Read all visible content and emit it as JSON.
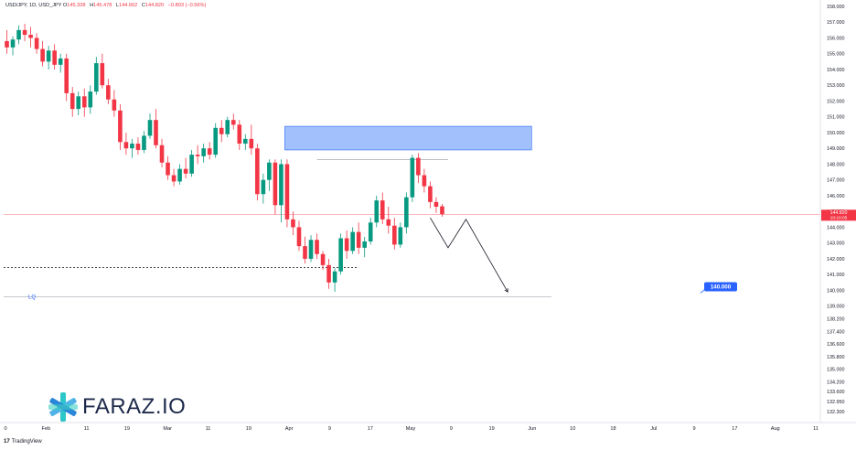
{
  "header": {
    "symbol": "USD/JPY, 1D, USD_JPY",
    "o_label": "O",
    "o_value": "145.328",
    "h_label": "H",
    "h_value": "145.478",
    "l_label": "L",
    "l_value": "144.662",
    "c_label": "C",
    "c_value": "144.820",
    "change": "−0.803 (−0.56%)"
  },
  "brand": {
    "name": "FARAZ.IO",
    "icon": "faraz-logo-icon"
  },
  "footer": {
    "logo": "TradingView",
    "mark": "17"
  },
  "colors": {
    "up": "#089981",
    "down": "#f23645",
    "zone_fill": "#90b5fb",
    "zone_stroke": "#2962ff",
    "badge": "#2962ff",
    "price_line": "#f23645"
  },
  "chart_data": {
    "type": "candlestick",
    "symbol": "USD/JPY",
    "timeframe": "1D",
    "ylim": [
      131.85,
      158.0
    ],
    "y_ticks": [
      "158.000",
      "157.000",
      "156.000",
      "155.000",
      "154.000",
      "153.000",
      "152.000",
      "151.000",
      "150.000",
      "149.000",
      "148.000",
      "147.000",
      "146.000",
      "145.000",
      "144.000",
      "143.000",
      "142.000",
      "141.000",
      "140.000",
      "139.000",
      "138.200",
      "137.400",
      "136.600",
      "135.800",
      "135.000",
      "134.200",
      "133.600",
      "132.950",
      "132.300"
    ],
    "x_ticks": [
      "0",
      "Feb",
      "11",
      "19",
      "Mar",
      "11",
      "19",
      "Apr",
      "9",
      "17",
      "May",
      "9",
      "19",
      "Jun",
      "10",
      "18",
      "Jul",
      "9",
      "17",
      "Aug",
      "11"
    ],
    "last_price": {
      "value": 144.82,
      "label": "144.820",
      "countdown": "10:10:05"
    },
    "target_badge": {
      "value": 140.0,
      "label": "140.000"
    },
    "liquidity_line": {
      "value": 139.6,
      "label": "LQ"
    },
    "support_dashed": {
      "value": 141.45
    },
    "resistance_zone": {
      "from": 148.9,
      "to": 150.4
    },
    "swing_high_line": {
      "value": 148.3
    },
    "projected_path": [
      {
        "bar": 71,
        "value": 144.6
      },
      {
        "bar": 74,
        "value": 142.7
      },
      {
        "bar": 77,
        "value": 144.5
      },
      {
        "bar": 84,
        "value": 139.9
      }
    ],
    "candles": [
      {
        "o": 155.8,
        "h": 156.5,
        "l": 155.0,
        "c": 155.4
      },
      {
        "o": 155.4,
        "h": 156.1,
        "l": 154.9,
        "c": 155.9
      },
      {
        "o": 155.9,
        "h": 156.8,
        "l": 155.6,
        "c": 156.5
      },
      {
        "o": 156.5,
        "h": 156.9,
        "l": 155.8,
        "c": 156.2
      },
      {
        "o": 156.2,
        "h": 156.7,
        "l": 155.4,
        "c": 156.0
      },
      {
        "o": 156.0,
        "h": 156.3,
        "l": 155.0,
        "c": 155.3
      },
      {
        "o": 155.3,
        "h": 155.8,
        "l": 154.2,
        "c": 154.5
      },
      {
        "o": 154.5,
        "h": 155.5,
        "l": 154.0,
        "c": 155.2
      },
      {
        "o": 155.2,
        "h": 155.6,
        "l": 154.0,
        "c": 154.3
      },
      {
        "o": 154.3,
        "h": 155.0,
        "l": 153.8,
        "c": 154.7
      },
      {
        "o": 154.7,
        "h": 155.0,
        "l": 152.0,
        "c": 152.5
      },
      {
        "o": 152.5,
        "h": 152.9,
        "l": 151.0,
        "c": 151.5
      },
      {
        "o": 151.5,
        "h": 152.6,
        "l": 151.1,
        "c": 152.3
      },
      {
        "o": 152.3,
        "h": 152.8,
        "l": 151.0,
        "c": 151.6
      },
      {
        "o": 151.6,
        "h": 153.0,
        "l": 151.2,
        "c": 152.6
      },
      {
        "o": 152.6,
        "h": 154.8,
        "l": 152.4,
        "c": 154.4
      },
      {
        "o": 154.4,
        "h": 155.0,
        "l": 152.8,
        "c": 153.0
      },
      {
        "o": 153.0,
        "h": 153.4,
        "l": 151.8,
        "c": 152.1
      },
      {
        "o": 152.1,
        "h": 152.7,
        "l": 151.0,
        "c": 151.4
      },
      {
        "o": 151.4,
        "h": 151.8,
        "l": 148.9,
        "c": 149.4
      },
      {
        "o": 149.4,
        "h": 150.0,
        "l": 148.6,
        "c": 149.0
      },
      {
        "o": 149.0,
        "h": 149.6,
        "l": 148.4,
        "c": 149.3
      },
      {
        "o": 149.3,
        "h": 149.7,
        "l": 148.6,
        "c": 148.9
      },
      {
        "o": 148.9,
        "h": 150.1,
        "l": 148.7,
        "c": 149.8
      },
      {
        "o": 149.8,
        "h": 151.2,
        "l": 149.6,
        "c": 150.8
      },
      {
        "o": 150.8,
        "h": 151.5,
        "l": 149.0,
        "c": 149.2
      },
      {
        "o": 149.2,
        "h": 149.6,
        "l": 147.8,
        "c": 148.1
      },
      {
        "o": 148.1,
        "h": 148.5,
        "l": 147.0,
        "c": 147.3
      },
      {
        "o": 147.3,
        "h": 147.7,
        "l": 146.6,
        "c": 146.9
      },
      {
        "o": 146.9,
        "h": 148.0,
        "l": 146.7,
        "c": 147.7
      },
      {
        "o": 147.7,
        "h": 148.4,
        "l": 147.1,
        "c": 147.4
      },
      {
        "o": 147.4,
        "h": 148.9,
        "l": 147.2,
        "c": 148.6
      },
      {
        "o": 148.6,
        "h": 149.2,
        "l": 148.0,
        "c": 148.5
      },
      {
        "o": 148.5,
        "h": 149.3,
        "l": 148.1,
        "c": 149.0
      },
      {
        "o": 149.0,
        "h": 149.4,
        "l": 148.3,
        "c": 148.6
      },
      {
        "o": 148.6,
        "h": 150.6,
        "l": 148.4,
        "c": 150.3
      },
      {
        "o": 150.3,
        "h": 150.8,
        "l": 149.4,
        "c": 149.9
      },
      {
        "o": 149.9,
        "h": 151.0,
        "l": 149.7,
        "c": 150.8
      },
      {
        "o": 150.8,
        "h": 151.2,
        "l": 150.2,
        "c": 150.5
      },
      {
        "o": 150.5,
        "h": 150.8,
        "l": 148.9,
        "c": 149.3
      },
      {
        "o": 149.3,
        "h": 149.9,
        "l": 148.9,
        "c": 149.6
      },
      {
        "o": 149.6,
        "h": 150.5,
        "l": 148.6,
        "c": 149.0
      },
      {
        "o": 149.0,
        "h": 149.3,
        "l": 145.7,
        "c": 146.1
      },
      {
        "o": 146.1,
        "h": 147.4,
        "l": 145.5,
        "c": 147.0
      },
      {
        "o": 147.0,
        "h": 148.3,
        "l": 146.3,
        "c": 148.1
      },
      {
        "o": 148.1,
        "h": 148.3,
        "l": 144.8,
        "c": 145.4
      },
      {
        "o": 145.4,
        "h": 148.3,
        "l": 144.3,
        "c": 148.0
      },
      {
        "o": 148.0,
        "h": 148.3,
        "l": 144.0,
        "c": 144.5
      },
      {
        "o": 144.5,
        "h": 145.0,
        "l": 143.5,
        "c": 144.0
      },
      {
        "o": 144.0,
        "h": 144.4,
        "l": 142.5,
        "c": 142.8
      },
      {
        "o": 142.8,
        "h": 143.4,
        "l": 141.7,
        "c": 142.0
      },
      {
        "o": 142.0,
        "h": 143.5,
        "l": 141.8,
        "c": 143.2
      },
      {
        "o": 143.2,
        "h": 143.6,
        "l": 142.0,
        "c": 142.3
      },
      {
        "o": 142.3,
        "h": 142.5,
        "l": 141.3,
        "c": 141.6
      },
      {
        "o": 141.6,
        "h": 142.0,
        "l": 140.1,
        "c": 140.5
      },
      {
        "o": 140.5,
        "h": 141.4,
        "l": 139.9,
        "c": 141.2
      },
      {
        "o": 141.2,
        "h": 143.6,
        "l": 141.0,
        "c": 143.3
      },
      {
        "o": 143.3,
        "h": 143.8,
        "l": 142.0,
        "c": 142.5
      },
      {
        "o": 142.5,
        "h": 144.0,
        "l": 142.3,
        "c": 143.7
      },
      {
        "o": 143.7,
        "h": 144.3,
        "l": 142.3,
        "c": 142.7
      },
      {
        "o": 142.7,
        "h": 143.4,
        "l": 142.1,
        "c": 143.1
      },
      {
        "o": 143.1,
        "h": 144.6,
        "l": 142.9,
        "c": 144.3
      },
      {
        "o": 144.3,
        "h": 146.0,
        "l": 144.0,
        "c": 145.7
      },
      {
        "o": 145.7,
        "h": 146.2,
        "l": 144.2,
        "c": 144.5
      },
      {
        "o": 144.5,
        "h": 145.3,
        "l": 143.6,
        "c": 144.1
      },
      {
        "o": 144.1,
        "h": 144.6,
        "l": 142.6,
        "c": 142.9
      },
      {
        "o": 142.9,
        "h": 144.3,
        "l": 142.7,
        "c": 144.0
      },
      {
        "o": 144.0,
        "h": 146.2,
        "l": 143.6,
        "c": 145.9
      },
      {
        "o": 145.9,
        "h": 148.6,
        "l": 145.6,
        "c": 148.4
      },
      {
        "o": 148.4,
        "h": 148.7,
        "l": 146.8,
        "c": 147.3
      },
      {
        "o": 147.3,
        "h": 147.7,
        "l": 146.2,
        "c": 146.6
      },
      {
        "o": 146.6,
        "h": 146.9,
        "l": 145.2,
        "c": 145.6
      },
      {
        "o": 145.6,
        "h": 145.9,
        "l": 144.9,
        "c": 145.3
      },
      {
        "o": 145.328,
        "h": 145.478,
        "l": 144.662,
        "c": 144.82
      }
    ]
  }
}
